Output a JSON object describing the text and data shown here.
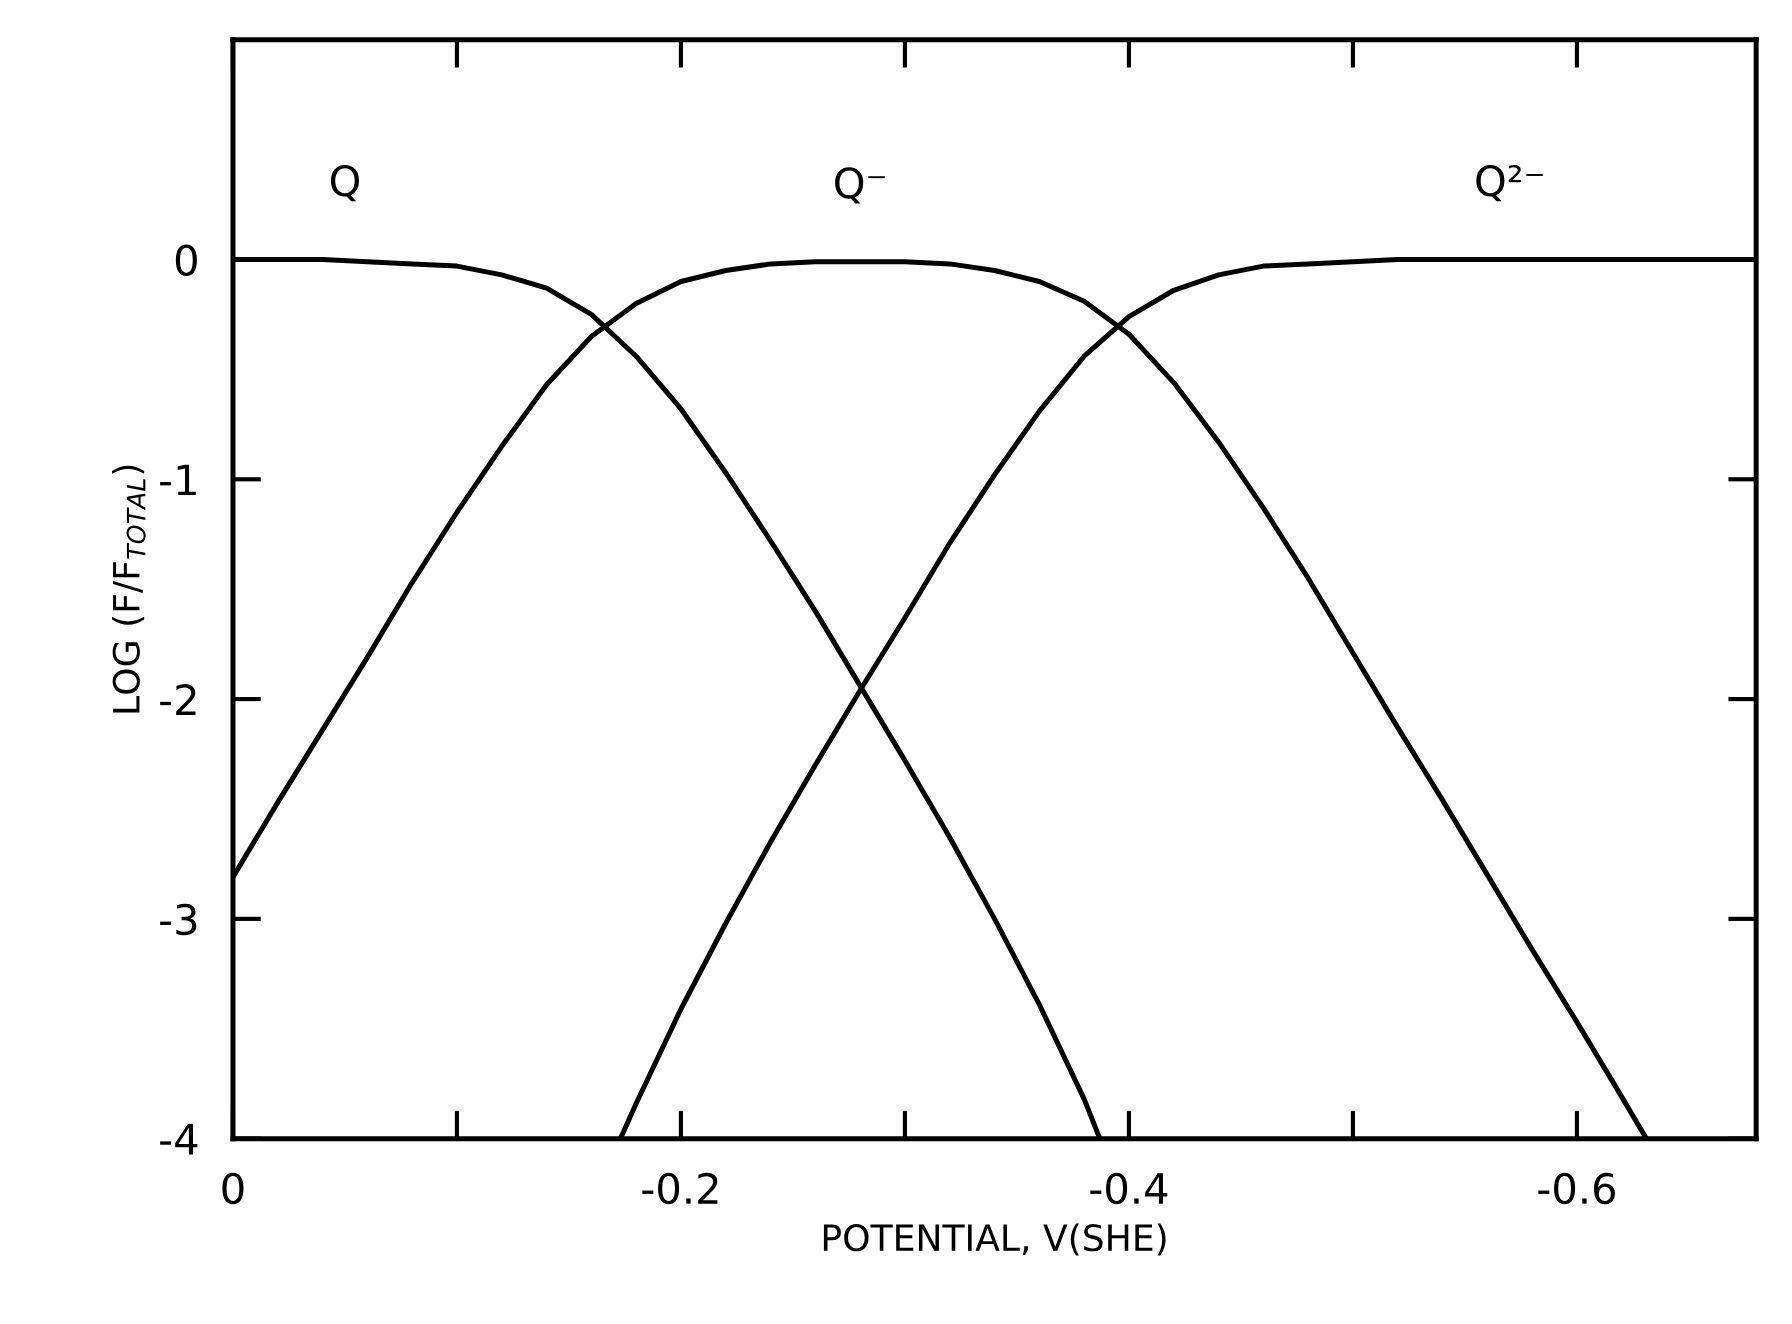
{
  "chart_data": {
    "type": "line",
    "xlabel": "POTENTIAL, V(SHE)",
    "ylabel": "LOG (F/F$_{TOTAL}$)",
    "xlim": [
      0,
      -0.68
    ],
    "ylim": [
      -4,
      1
    ],
    "xticks": [
      0,
      {
        "value": -0.1,
        "label": null
      },
      -0.2,
      {
        "value": -0.3,
        "label": null
      },
      -0.4,
      {
        "value": -0.5,
        "label": null
      },
      -0.6
    ],
    "yticks": [
      0,
      -1,
      -2,
      -3,
      -4
    ],
    "grid": false,
    "legend": false,
    "marker": "none",
    "line_style": "solid",
    "series": [
      {
        "name": "Q",
        "color": "#000000",
        "x": [
          0,
          -0.02,
          -0.04,
          -0.06,
          -0.08,
          -0.1,
          -0.12,
          -0.14,
          -0.16,
          -0.18,
          -0.2,
          -0.22,
          -0.24,
          -0.26,
          -0.28,
          -0.3,
          -0.32,
          -0.34,
          -0.36,
          -0.38,
          -0.387
        ],
        "values": [
          0,
          0,
          0,
          -0.01,
          -0.02,
          -0.03,
          -0.07,
          -0.13,
          -0.25,
          -0.44,
          -0.68,
          -0.97,
          -1.28,
          -1.6,
          -1.94,
          -2.28,
          -2.63,
          -3.0,
          -3.39,
          -3.82,
          -4.0
        ]
      },
      {
        "name": "Q⁻",
        "color": "#000000",
        "x": [
          0,
          -0.02,
          -0.04,
          -0.06,
          -0.08,
          -0.1,
          -0.12,
          -0.14,
          -0.16,
          -0.18,
          -0.2,
          -0.22,
          -0.24,
          -0.26,
          -0.28,
          -0.3,
          -0.32,
          -0.34,
          -0.36,
          -0.38,
          -0.4,
          -0.42,
          -0.44,
          -0.46,
          -0.48,
          -0.5,
          -0.52,
          -0.54,
          -0.56,
          -0.58,
          -0.6,
          -0.62,
          -0.631
        ],
        "values": [
          -2.81,
          -2.47,
          -2.14,
          -1.81,
          -1.47,
          -1.15,
          -0.85,
          -0.57,
          -0.35,
          -0.2,
          -0.1,
          -0.05,
          -0.02,
          -0.01,
          -0.01,
          -0.01,
          -0.02,
          -0.05,
          -0.1,
          -0.19,
          -0.34,
          -0.56,
          -0.83,
          -1.13,
          -1.45,
          -1.79,
          -2.13,
          -2.46,
          -2.8,
          -3.14,
          -3.47,
          -3.81,
          -4.0
        ]
      },
      {
        "name": "Q²⁻",
        "color": "#000000",
        "x": [
          -0.173,
          -0.18,
          -0.2,
          -0.22,
          -0.24,
          -0.26,
          -0.28,
          -0.3,
          -0.32,
          -0.34,
          -0.36,
          -0.38,
          -0.4,
          -0.42,
          -0.44,
          -0.46,
          -0.48,
          -0.5,
          -0.52,
          -0.54,
          -0.68
        ],
        "values": [
          -4.0,
          -3.84,
          -3.41,
          -3.02,
          -2.65,
          -2.3,
          -1.96,
          -1.63,
          -1.29,
          -0.98,
          -0.69,
          -0.44,
          -0.26,
          -0.14,
          -0.07,
          -0.03,
          -0.02,
          -0.01,
          0,
          0,
          0
        ]
      }
    ]
  }
}
